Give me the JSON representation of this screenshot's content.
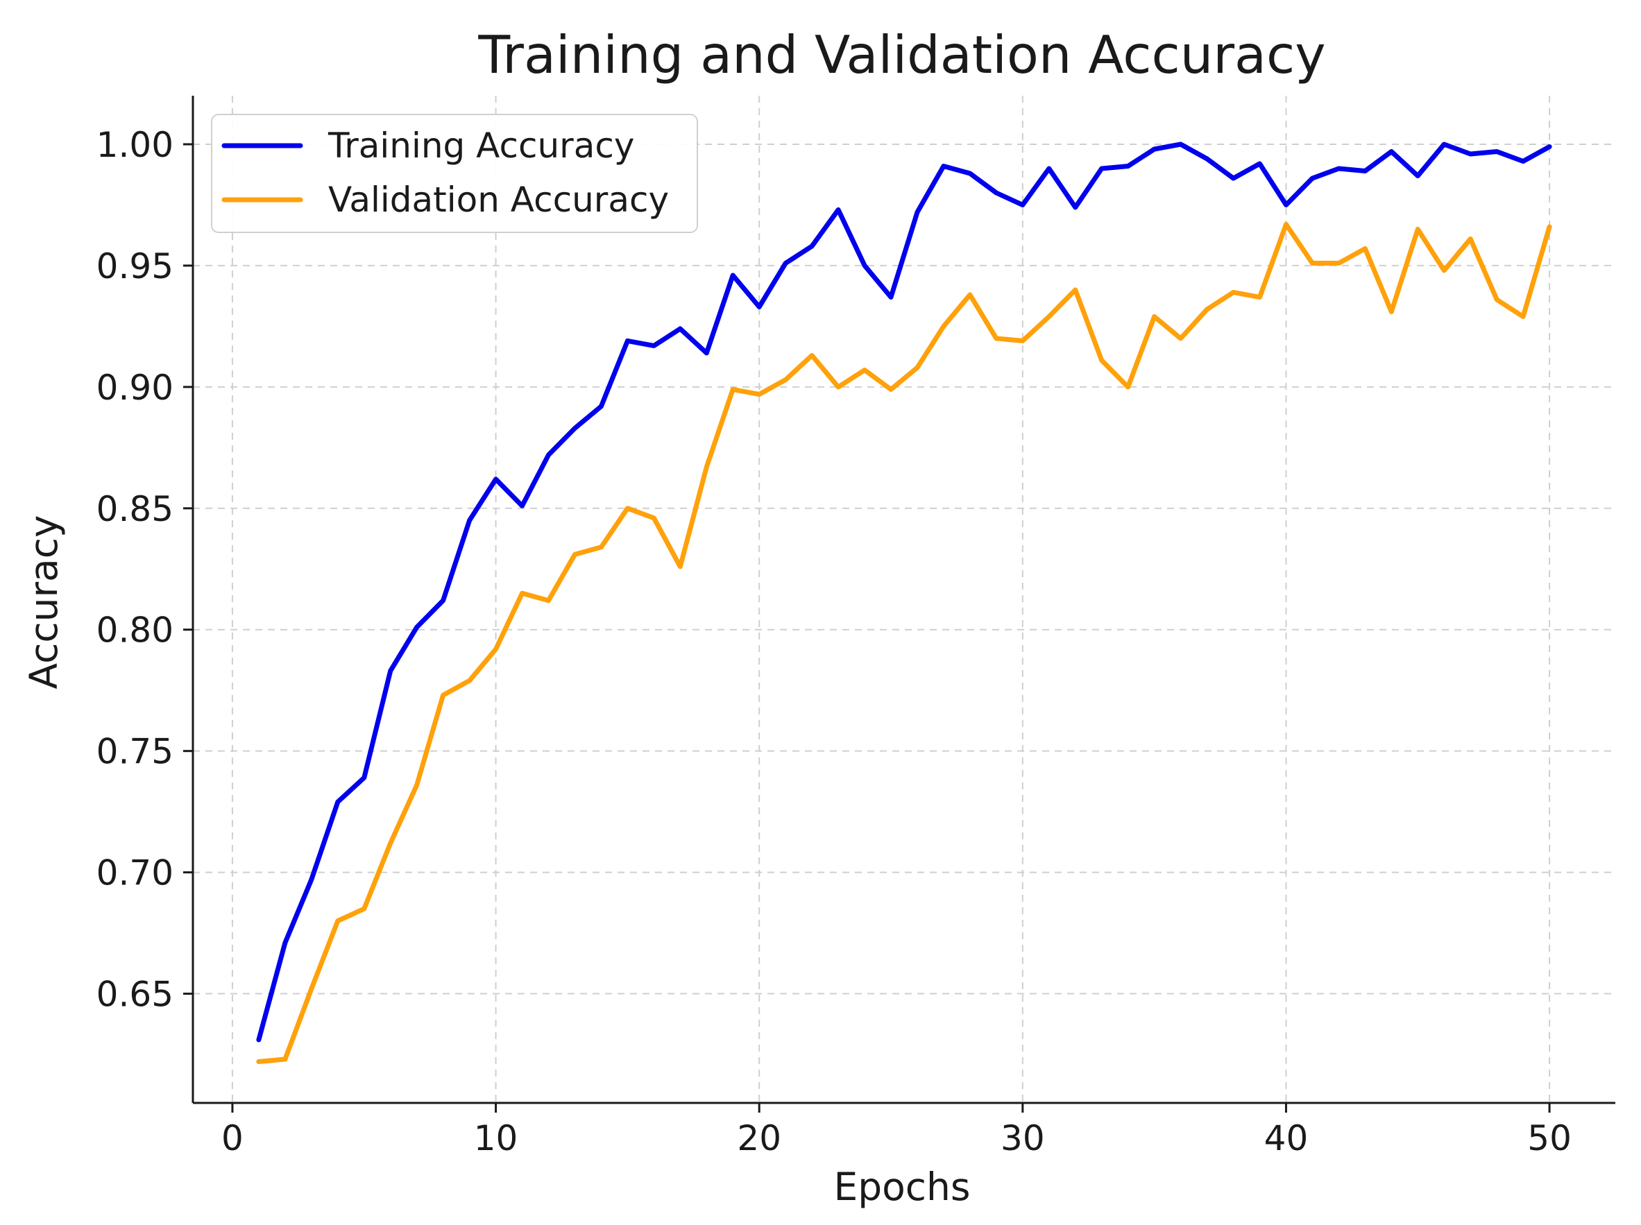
{
  "chart_data": {
    "type": "line",
    "title": "Training and Validation Accuracy",
    "xlabel": "Epochs",
    "ylabel": "Accuracy",
    "xlim": [
      -1.5,
      52.5
    ],
    "ylim": [
      0.605,
      1.02
    ],
    "xticks": [
      0,
      10,
      20,
      30,
      40,
      50
    ],
    "xtick_labels": [
      "0",
      "10",
      "20",
      "30",
      "40",
      "50"
    ],
    "yticks": [
      0.65,
      0.7,
      0.75,
      0.8,
      0.85,
      0.9,
      0.95,
      1.0
    ],
    "ytick_labels": [
      "0.65",
      "0.70",
      "0.75",
      "0.80",
      "0.85",
      "0.90",
      "0.95",
      "1.00"
    ],
    "grid": true,
    "legend_position": "top-left",
    "x": [
      1,
      2,
      3,
      4,
      5,
      6,
      7,
      8,
      9,
      10,
      11,
      12,
      13,
      14,
      15,
      16,
      17,
      18,
      19,
      20,
      21,
      22,
      23,
      24,
      25,
      26,
      27,
      28,
      29,
      30,
      31,
      32,
      33,
      34,
      35,
      36,
      37,
      38,
      39,
      40,
      41,
      42,
      43,
      44,
      45,
      46,
      47,
      48,
      49,
      50
    ],
    "series": [
      {
        "name": "Training Accuracy",
        "color": "#0000ee",
        "values": [
          0.631,
          0.671,
          0.697,
          0.729,
          0.739,
          0.783,
          0.801,
          0.812,
          0.845,
          0.862,
          0.851,
          0.872,
          0.883,
          0.892,
          0.919,
          0.917,
          0.924,
          0.914,
          0.946,
          0.933,
          0.951,
          0.958,
          0.973,
          0.95,
          0.937,
          0.972,
          0.991,
          0.988,
          0.98,
          0.975,
          0.99,
          0.974,
          0.99,
          0.991,
          0.998,
          1.0,
          0.994,
          0.986,
          0.992,
          0.975,
          0.986,
          0.99,
          0.989,
          0.997,
          0.987,
          1.0,
          0.996,
          0.997,
          0.993,
          0.999
        ]
      },
      {
        "name": "Validation Accuracy",
        "color": "#ffa10a",
        "values": [
          0.622,
          0.623,
          0.652,
          0.68,
          0.685,
          0.712,
          0.736,
          0.773,
          0.779,
          0.792,
          0.815,
          0.812,
          0.831,
          0.834,
          0.85,
          0.846,
          0.826,
          0.867,
          0.899,
          0.897,
          0.903,
          0.913,
          0.9,
          0.907,
          0.899,
          0.908,
          0.925,
          0.938,
          0.92,
          0.919,
          0.929,
          0.94,
          0.911,
          0.9,
          0.929,
          0.92,
          0.932,
          0.939,
          0.937,
          0.967,
          0.951,
          0.951,
          0.957,
          0.931,
          0.965,
          0.948,
          0.961,
          0.936,
          0.929,
          0.966
        ]
      }
    ]
  }
}
